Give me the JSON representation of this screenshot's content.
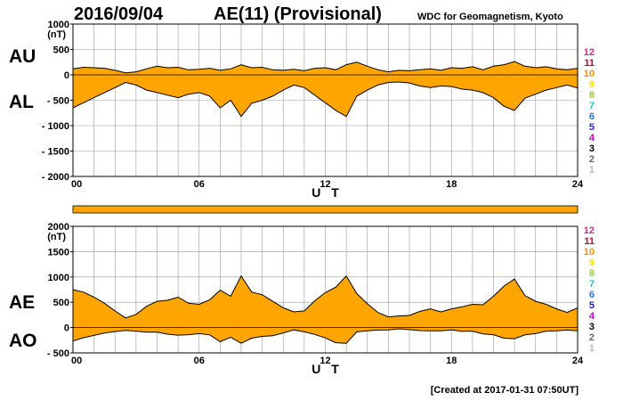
{
  "header": {
    "date": "2016/09/04",
    "title": "AE(11) (Provisional)",
    "organization": "WDC for Geomagnetism, Kyoto"
  },
  "footer": {
    "created": "[Created at 2017-01-31 07:50UT]"
  },
  "colors": {
    "fill": "#FFA500",
    "line": "#000000",
    "grid": "#999999"
  },
  "legend": {
    "items": [
      {
        "label": "12",
        "color": "#E0218A"
      },
      {
        "label": "11",
        "color": "#D2001E"
      },
      {
        "label": "10",
        "color": "#FF8C00"
      },
      {
        "label": "9",
        "color": "#FFE000"
      },
      {
        "label": "8",
        "color": "#9ACD32"
      },
      {
        "label": "7",
        "color": "#20C8C8"
      },
      {
        "label": "6",
        "color": "#1E78FF"
      },
      {
        "label": "5",
        "color": "#1E1EC8"
      },
      {
        "label": "4",
        "color": "#C800C8"
      },
      {
        "label": "3",
        "color": "#000000"
      },
      {
        "label": "2",
        "color": "#666666"
      },
      {
        "label": "1",
        "color": "#BBBBBB"
      }
    ]
  },
  "chart_data": [
    {
      "type": "area",
      "labels": {
        "upper": "AU",
        "lower": "AL"
      },
      "unit": "(nT)",
      "xlabel": "U T",
      "xlim": [
        0,
        24
      ],
      "ylim": [
        -2000,
        1000
      ],
      "yticks": [
        1000,
        500,
        0,
        -500,
        -1000,
        -1500,
        -2000
      ],
      "ytick_labels": [
        "1000",
        "500",
        "0",
        "- 500",
        "- 1000",
        "- 1500",
        "- 2000"
      ],
      "xticks": [
        0,
        6,
        12,
        18,
        24
      ],
      "xtick_labels": [
        "00",
        "06",
        "12",
        "18",
        "24"
      ],
      "grid": true,
      "series": [
        {
          "name": "AU",
          "x": [
            0,
            0.5,
            1,
            1.5,
            2,
            2.5,
            3,
            3.5,
            4,
            4.5,
            5,
            5.5,
            6,
            6.5,
            7,
            7.5,
            8,
            8.5,
            9,
            9.5,
            10,
            10.5,
            11,
            11.5,
            12,
            12.5,
            13,
            13.5,
            14,
            14.5,
            15,
            15.5,
            16,
            16.5,
            17,
            17.5,
            18,
            18.5,
            19,
            19.5,
            20,
            20.5,
            21,
            21.5,
            22,
            22.5,
            23,
            23.5,
            24
          ],
          "values": [
            120,
            150,
            140,
            130,
            90,
            40,
            60,
            120,
            170,
            140,
            150,
            100,
            110,
            130,
            90,
            120,
            200,
            140,
            150,
            100,
            90,
            110,
            80,
            130,
            140,
            100,
            200,
            250,
            170,
            100,
            60,
            90,
            80,
            100,
            120,
            90,
            140,
            130,
            160,
            100,
            170,
            200,
            260,
            170,
            140,
            160,
            120,
            100,
            130
          ]
        },
        {
          "name": "AL",
          "x": [
            0,
            0.5,
            1,
            1.5,
            2,
            2.5,
            3,
            3.5,
            4,
            4.5,
            5,
            5.5,
            6,
            6.5,
            7,
            7.5,
            8,
            8.5,
            9,
            9.5,
            10,
            10.5,
            11,
            11.5,
            12,
            12.5,
            13,
            13.5,
            14,
            14.5,
            15,
            15.5,
            16,
            16.5,
            17,
            17.5,
            18,
            18.5,
            19,
            19.5,
            20,
            20.5,
            21,
            21.5,
            22,
            22.5,
            23,
            23.5,
            24
          ],
          "values": [
            -650,
            -550,
            -450,
            -350,
            -250,
            -150,
            -200,
            -300,
            -350,
            -400,
            -450,
            -380,
            -350,
            -420,
            -650,
            -500,
            -820,
            -560,
            -500,
            -420,
            -300,
            -200,
            -250,
            -400,
            -550,
            -700,
            -820,
            -420,
            -300,
            -200,
            -150,
            -140,
            -160,
            -220,
            -250,
            -220,
            -230,
            -280,
            -300,
            -350,
            -450,
            -620,
            -700,
            -460,
            -380,
            -300,
            -250,
            -200,
            -260
          ]
        }
      ]
    },
    {
      "type": "area",
      "labels": {
        "upper": "AE",
        "lower": "AO"
      },
      "unit": "(nT)",
      "xlabel": "U T",
      "xlim": [
        0,
        24
      ],
      "ylim": [
        -500,
        2000
      ],
      "yticks": [
        2000,
        1500,
        1000,
        500,
        0,
        -500
      ],
      "ytick_labels": [
        "2000",
        "1500",
        "1000",
        "500",
        "0",
        "- 500"
      ],
      "xticks": [
        0,
        6,
        12,
        18,
        24
      ],
      "xtick_labels": [
        "00",
        "06",
        "12",
        "18",
        "24"
      ],
      "grid": true,
      "series": [
        {
          "name": "AE",
          "x": [
            0,
            0.5,
            1,
            1.5,
            2,
            2.5,
            3,
            3.5,
            4,
            4.5,
            5,
            5.5,
            6,
            6.5,
            7,
            7.5,
            8,
            8.5,
            9,
            9.5,
            10,
            10.5,
            11,
            11.5,
            12,
            12.5,
            13,
            13.5,
            14,
            14.5,
            15,
            15.5,
            16,
            16.5,
            17,
            17.5,
            18,
            18.5,
            19,
            19.5,
            20,
            20.5,
            21,
            21.5,
            22,
            22.5,
            23,
            23.5,
            24
          ],
          "values": [
            750,
            700,
            600,
            480,
            330,
            190,
            260,
            420,
            520,
            540,
            600,
            480,
            460,
            550,
            740,
            620,
            1020,
            700,
            650,
            520,
            390,
            310,
            330,
            530,
            690,
            800,
            1020,
            670,
            470,
            300,
            210,
            230,
            240,
            320,
            370,
            310,
            370,
            410,
            460,
            450,
            620,
            820,
            960,
            630,
            520,
            460,
            370,
            300,
            390
          ]
        },
        {
          "name": "AO",
          "x": [
            0,
            0.5,
            1,
            1.5,
            2,
            2.5,
            3,
            3.5,
            4,
            4.5,
            5,
            5.5,
            6,
            6.5,
            7,
            7.5,
            8,
            8.5,
            9,
            9.5,
            10,
            10.5,
            11,
            11.5,
            12,
            12.5,
            13,
            13.5,
            14,
            14.5,
            15,
            15.5,
            16,
            16.5,
            17,
            17.5,
            18,
            18.5,
            19,
            19.5,
            20,
            20.5,
            21,
            21.5,
            22,
            22.5,
            23,
            23.5,
            24
          ],
          "values": [
            -265,
            -200,
            -155,
            -110,
            -80,
            -55,
            -70,
            -90,
            -90,
            -130,
            -150,
            -140,
            -120,
            -145,
            -280,
            -190,
            -310,
            -210,
            -175,
            -160,
            -105,
            -45,
            -85,
            -135,
            -205,
            -300,
            -310,
            -85,
            -65,
            -50,
            -45,
            -25,
            -40,
            -60,
            -65,
            -65,
            -45,
            -75,
            -70,
            -125,
            -140,
            -210,
            -220,
            -145,
            -120,
            -70,
            -65,
            -50,
            -65
          ]
        }
      ]
    }
  ]
}
